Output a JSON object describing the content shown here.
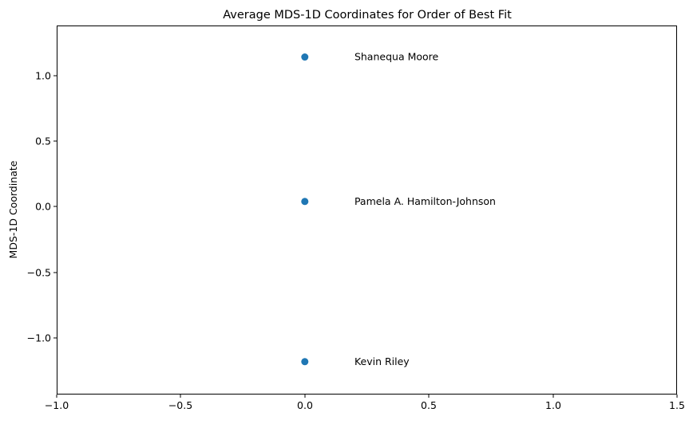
{
  "chart_data": {
    "type": "scatter",
    "title": "Average MDS-1D Coordinates for Order of Best Fit",
    "xlabel": "",
    "ylabel": "MDS-1D Coordinate",
    "xlim": [
      -1.0,
      1.5
    ],
    "ylim": [
      -1.43,
      1.38
    ],
    "xticks": [
      -1.0,
      -0.5,
      0.0,
      0.5,
      1.0,
      1.5
    ],
    "xtick_labels": [
      "−1.0",
      "−0.5",
      "0.0",
      "0.5",
      "1.0",
      "1.5"
    ],
    "yticks": [
      -1.0,
      -0.5,
      0.0,
      0.5,
      1.0
    ],
    "ytick_labels": [
      "−1.0",
      "−0.5",
      "0.0",
      "0.5",
      "1.0"
    ],
    "grid": false,
    "point_color": "#1f77b4",
    "points": [
      {
        "label": "Shanequa Moore",
        "x": 0.0,
        "y": 1.14
      },
      {
        "label": "Pamela A. Hamilton-Johnson",
        "x": 0.0,
        "y": 0.04
      },
      {
        "label": "Kevin Riley",
        "x": 0.0,
        "y": -1.18
      }
    ],
    "label_offset_x": 0.2
  }
}
